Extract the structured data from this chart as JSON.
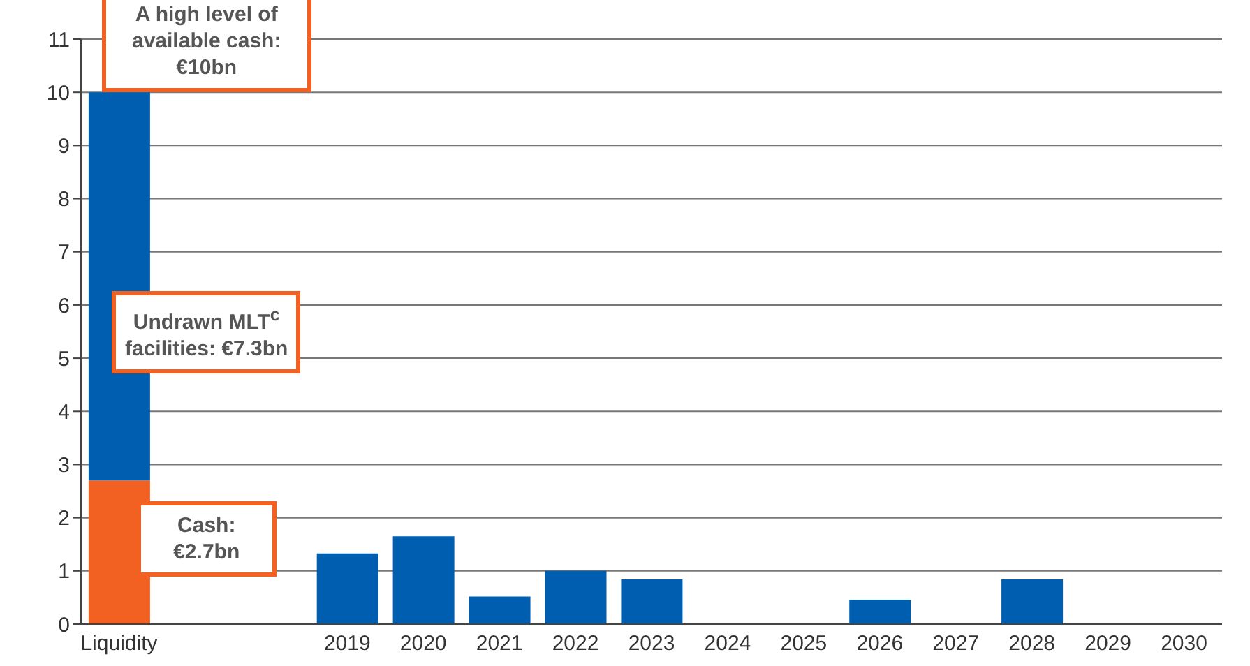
{
  "chart_data": {
    "type": "bar",
    "stacked": true,
    "categories": [
      "Liquidity",
      null,
      null,
      "2019",
      "2020",
      "2021",
      "2022",
      "2023",
      "2024",
      "2025",
      "2026",
      "2027",
      "2028",
      "2029",
      "2030"
    ],
    "series": [
      {
        "color": "#f26122",
        "values": [
          2.7,
          null,
          null,
          null,
          null,
          null,
          null,
          null,
          null,
          null,
          null,
          null,
          null,
          null,
          null
        ]
      },
      {
        "color": "#005eb0",
        "values": [
          7.3,
          null,
          null,
          1.33,
          1.65,
          0.52,
          1.0,
          0.84,
          null,
          null,
          0.46,
          null,
          0.84,
          null,
          null
        ]
      }
    ],
    "ylim": [
      0,
      11
    ],
    "yticks": [
      0,
      1,
      2,
      3,
      4,
      5,
      6,
      7,
      8,
      9,
      10,
      11
    ],
    "grid": "y",
    "annotations": [
      "A high level of available cash: €10bn",
      "Undrawn MLT$^{c}$ facilities: €7.3bn",
      "Cash: €2.7bn"
    ]
  }
}
